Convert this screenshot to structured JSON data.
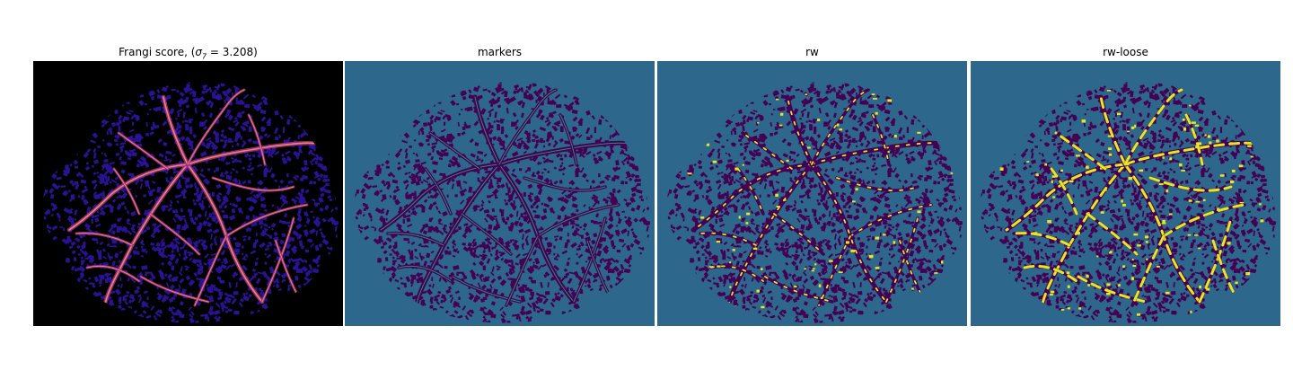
{
  "panels": [
    {
      "id": "frangi",
      "title_prefix": "Frangi score, (",
      "sigma_symbol": "σ",
      "sigma_sub": "7",
      "title_suffix": " = 3.208)",
      "colormap": "magma"
    },
    {
      "id": "markers",
      "title": "markers",
      "colormap": "viridis"
    },
    {
      "id": "rw",
      "title": "rw",
      "colormap": "viridis"
    },
    {
      "id": "rw-loose",
      "title": "rw-loose",
      "colormap": "viridis"
    }
  ],
  "colors": {
    "frangi_bg": "#000000",
    "frangi_texture": "#2a1295",
    "frangi_vessel_mid": "#a12a8e",
    "frangi_vessel_hi": "#f59f57",
    "marker_bg": "#2e678c",
    "marker_region": "#440154",
    "marker_vessel": "#2fa786",
    "rw_highlight": "#e9e51e"
  },
  "icons": [
    "retina-image"
  ]
}
